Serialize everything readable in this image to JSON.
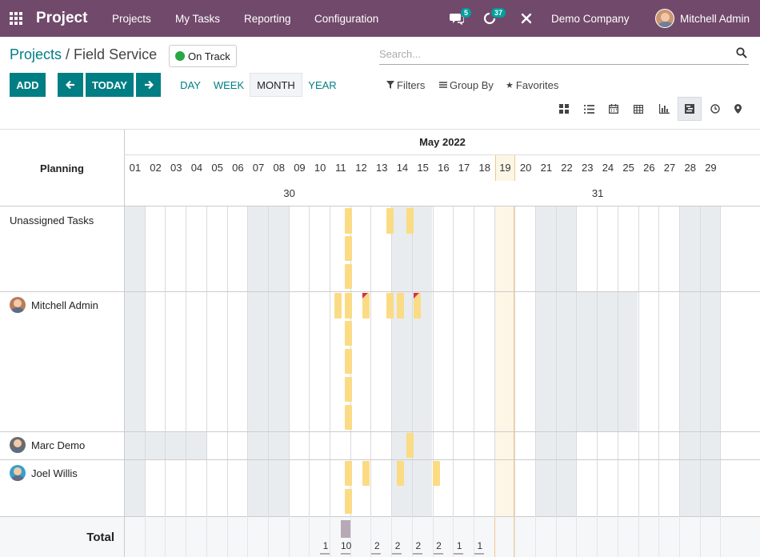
{
  "topbar": {
    "brand": "Project",
    "menu": [
      "Projects",
      "My Tasks",
      "Reporting",
      "Configuration"
    ],
    "chat_count": "5",
    "activity_count": "37",
    "company": "Demo Company",
    "user": "Mitchell Admin"
  },
  "control": {
    "breadcrumb_root": "Projects",
    "breadcrumb_sep": " / ",
    "breadcrumb_current": "Field Service",
    "status": "On Track",
    "search_placeholder": "Search...",
    "add": "ADD",
    "prev_icon": "arrow-left-icon",
    "today": "TODAY",
    "next_icon": "arrow-right-icon",
    "scales": [
      "DAY",
      "WEEK",
      "MONTH",
      "YEAR"
    ],
    "active_scale": "MONTH",
    "filters": "Filters",
    "group_by": "Group By",
    "favorites": "Favorites",
    "views": [
      "kanban-icon",
      "list-icon",
      "calendar-icon",
      "pivot-icon",
      "graph-icon",
      "gantt-icon",
      "activity-icon",
      "map-icon"
    ],
    "active_view": "gantt-icon"
  },
  "gantt": {
    "header_label": "Planning",
    "month": "May 2022",
    "days": [
      "01",
      "02",
      "03",
      "04",
      "05",
      "06",
      "07",
      "08",
      "09",
      "10",
      "11",
      "12",
      "13",
      "14",
      "15",
      "16",
      "17",
      "18",
      "19",
      "20",
      "21",
      "22",
      "23",
      "24",
      "25",
      "26",
      "27",
      "28",
      "29"
    ],
    "today_day": "19",
    "weeks": [
      {
        "label": "30",
        "day_index": 7
      },
      {
        "label": "31",
        "day_index": 22
      }
    ],
    "rows": [
      {
        "label": "Unassigned Tasks",
        "avatar": false
      },
      {
        "label": "Mitchell Admin",
        "avatar": true,
        "avatar_color": "#b87d58"
      },
      {
        "label": "Marc Demo",
        "avatar": true,
        "avatar_color": "#6b6b6b"
      },
      {
        "label": "Joel Willis",
        "avatar": true,
        "avatar_color": "#3aa0c8"
      }
    ],
    "total_label": "Total",
    "totals": [
      {
        "day_index": 10,
        "value": "1"
      },
      {
        "day_index": 11,
        "value": "10"
      },
      {
        "day_index": 12,
        "value": "2"
      },
      {
        "day_index": 13,
        "value": "2"
      },
      {
        "day_index": 14,
        "value": "2"
      },
      {
        "day_index": 15,
        "value": "2"
      },
      {
        "day_index": 16,
        "value": "1"
      },
      {
        "day_index": 17,
        "value": "1"
      }
    ]
  }
}
